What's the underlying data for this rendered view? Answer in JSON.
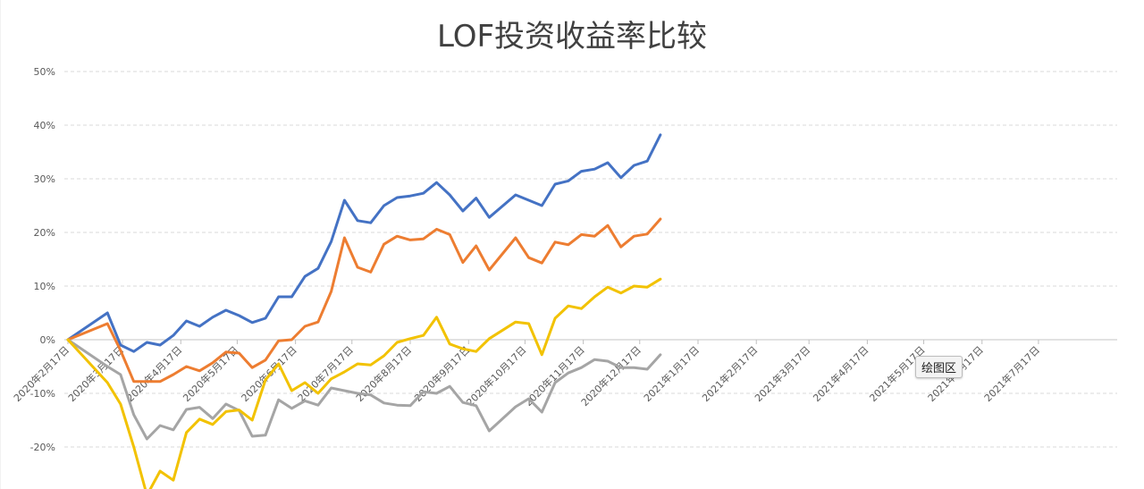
{
  "chart_data": {
    "type": "line",
    "title": "LOF投资收益率比较",
    "xlabel": "",
    "ylabel": "",
    "ylim": [
      -0.28,
      0.52
    ],
    "yticks": [
      {
        "value": 0.5,
        "label": "50%"
      },
      {
        "value": 0.4,
        "label": "40%"
      },
      {
        "value": 0.3,
        "label": "30%"
      },
      {
        "value": 0.2,
        "label": "20%"
      },
      {
        "value": 0.1,
        "label": "10%"
      },
      {
        "value": 0.0,
        "label": "0%"
      },
      {
        "value": -0.1,
        "label": "-10%"
      },
      {
        "value": -0.2,
        "label": "-20%"
      }
    ],
    "xlim": [
      "2020-02-17",
      "2021-07-17"
    ],
    "xticks": [
      {
        "date": "2020-02-17",
        "label": "2020年2月17日"
      },
      {
        "date": "2020-03-17",
        "label": "2020年3月17日"
      },
      {
        "date": "2020-04-17",
        "label": "2020年4月17日"
      },
      {
        "date": "2020-05-17",
        "label": "2020年5月17日"
      },
      {
        "date": "2020-06-17",
        "label": "2020年6月17日"
      },
      {
        "date": "2020-07-17",
        "label": "2020年7月17日"
      },
      {
        "date": "2020-08-17",
        "label": "2020年8月17日"
      },
      {
        "date": "2020-09-17",
        "label": "2020年9月17日"
      },
      {
        "date": "2020-10-17",
        "label": "2020年10月17日"
      },
      {
        "date": "2020-11-17",
        "label": "2020年11月17日"
      },
      {
        "date": "2020-12-17",
        "label": "2020年12月17日"
      },
      {
        "date": "2021-01-17",
        "label": "2021年1月17日"
      },
      {
        "date": "2021-02-17",
        "label": "2021年2月17日"
      },
      {
        "date": "2021-03-17",
        "label": "2021年3月17日"
      },
      {
        "date": "2021-04-17",
        "label": "2021年4月17日"
      },
      {
        "date": "2021-05-17",
        "label": "2021年5月17日"
      },
      {
        "date": "2021-06-17",
        "label": "2021年6月17日"
      },
      {
        "date": "2021-07-17",
        "label": "2021年7月17日"
      }
    ],
    "x": [
      "2020-02-17",
      "2020-03-09",
      "2020-03-16",
      "2020-03-23",
      "2020-03-30",
      "2020-04-06",
      "2020-04-13",
      "2020-04-20",
      "2020-04-27",
      "2020-05-04",
      "2020-05-11",
      "2020-05-18",
      "2020-05-25",
      "2020-06-01",
      "2020-06-08",
      "2020-06-15",
      "2020-06-22",
      "2020-06-29",
      "2020-07-06",
      "2020-07-13",
      "2020-07-20",
      "2020-07-27",
      "2020-08-03",
      "2020-08-10",
      "2020-08-17",
      "2020-08-24",
      "2020-08-31",
      "2020-09-07",
      "2020-09-14",
      "2020-09-21",
      "2020-09-28",
      "2020-10-12",
      "2020-10-19",
      "2020-10-26",
      "2020-11-02",
      "2020-11-09",
      "2020-11-16",
      "2020-11-23",
      "2020-11-30",
      "2020-12-07",
      "2020-12-14",
      "2020-12-21",
      "2020-12-28",
      "2021-01-04",
      "2021-01-11"
    ],
    "grid": true,
    "legend": "none",
    "series": [
      {
        "color": "#4472C4",
        "values": [
          0.0,
          0.05,
          -0.01,
          -0.022,
          -0.005,
          -0.01,
          0.008,
          0.035,
          0.025,
          0.042,
          0.055,
          0.045,
          0.032,
          0.04,
          0.08,
          0.08,
          0.118,
          0.133,
          0.183,
          0.26,
          0.222,
          0.218,
          0.25,
          0.265,
          0.268,
          0.273,
          0.293,
          0.27,
          0.24,
          0.264,
          0.228,
          0.27,
          0.26,
          0.25,
          0.29,
          0.296,
          0.314,
          0.318,
          0.33,
          0.302,
          0.325,
          0.333,
          0.382,
          null,
          null
        ]
      },
      {
        "color": "#ED7D31",
        "values": [
          0.0,
          0.03,
          -0.02,
          -0.078,
          -0.078,
          -0.078,
          -0.065,
          -0.05,
          -0.058,
          -0.043,
          -0.023,
          -0.025,
          -0.052,
          -0.038,
          -0.002,
          0.0,
          0.025,
          0.033,
          0.09,
          0.19,
          0.135,
          0.126,
          0.178,
          0.193,
          0.186,
          0.188,
          0.206,
          0.196,
          0.144,
          0.175,
          0.13,
          0.19,
          0.153,
          0.143,
          0.182,
          0.177,
          0.196,
          0.193,
          0.213,
          0.173,
          0.193,
          0.197,
          0.225,
          null,
          null
        ]
      },
      {
        "color": "#A5A5A5",
        "values": [
          0.0,
          -0.05,
          -0.065,
          -0.14,
          -0.185,
          -0.16,
          -0.168,
          -0.13,
          -0.126,
          -0.147,
          -0.12,
          -0.132,
          -0.18,
          -0.178,
          -0.112,
          -0.128,
          -0.114,
          -0.122,
          -0.09,
          -0.095,
          -0.1,
          -0.103,
          -0.118,
          -0.122,
          -0.123,
          -0.097,
          -0.1,
          -0.087,
          -0.117,
          -0.123,
          -0.17,
          -0.125,
          -0.11,
          -0.135,
          -0.08,
          -0.062,
          -0.052,
          -0.037,
          -0.04,
          -0.052,
          -0.052,
          -0.055,
          -0.028,
          null,
          null
        ]
      },
      {
        "color": "#F2C200",
        "values": [
          0.0,
          -0.08,
          -0.12,
          -0.2,
          -0.29,
          -0.245,
          -0.262,
          -0.173,
          -0.148,
          -0.158,
          -0.134,
          -0.131,
          -0.15,
          -0.075,
          -0.045,
          -0.095,
          -0.08,
          -0.1,
          -0.073,
          -0.06,
          -0.045,
          -0.047,
          -0.03,
          -0.005,
          0.002,
          0.008,
          0.042,
          -0.008,
          -0.017,
          -0.022,
          0.002,
          0.033,
          0.03,
          -0.028,
          0.04,
          0.063,
          0.058,
          0.08,
          0.098,
          0.087,
          0.1,
          0.098,
          0.113,
          null,
          null
        ]
      }
    ]
  },
  "tooltip": {
    "label": "绘图区"
  }
}
